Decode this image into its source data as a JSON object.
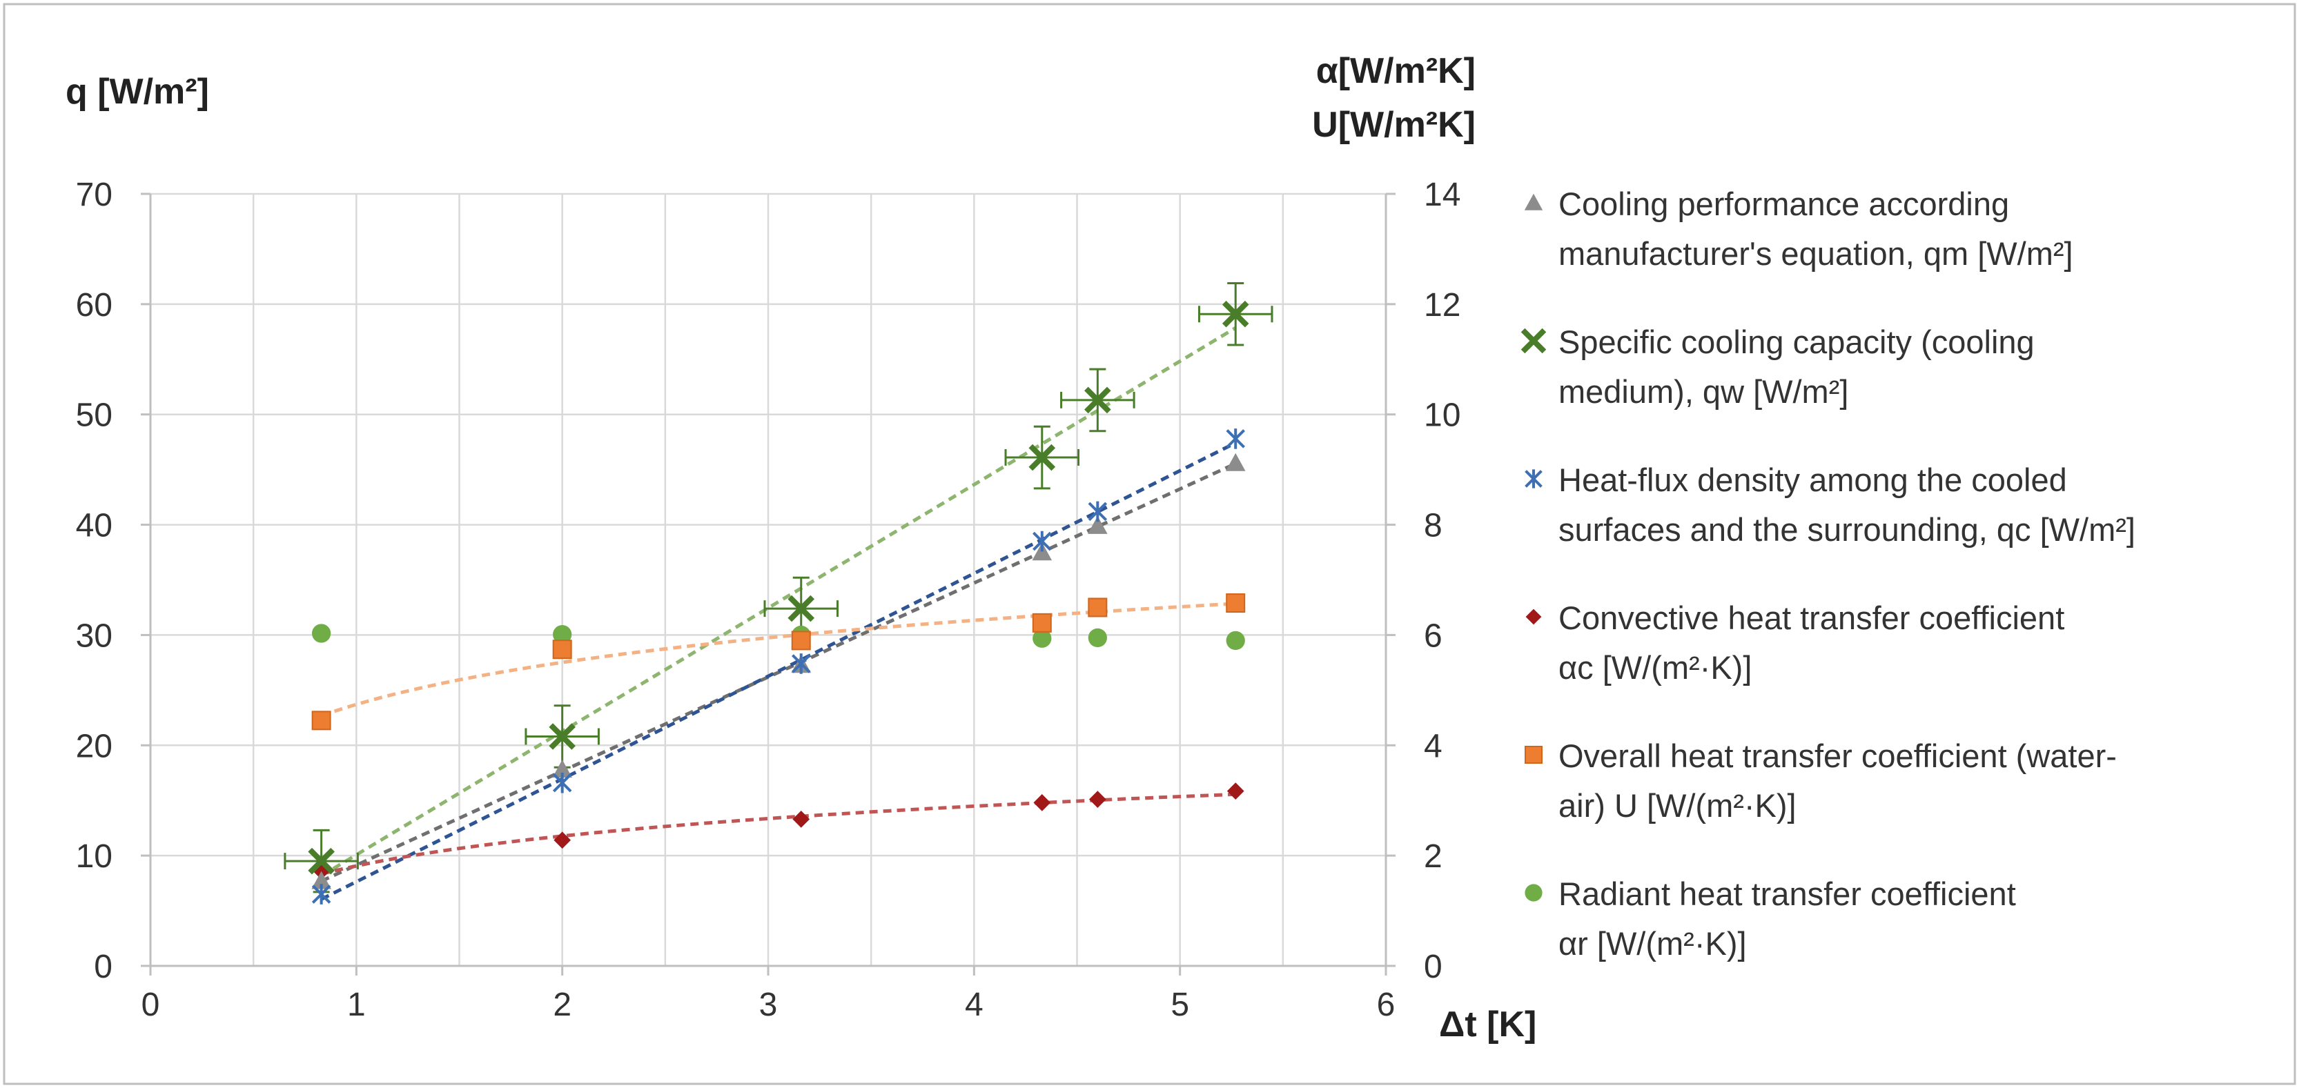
{
  "chart_data": {
    "type": "scatter",
    "title": "",
    "xlabel": "Δt [K]",
    "ylabel_left": "q [W/m²]",
    "ylabel_right": [
      "α[W/m²K]",
      "U[W/m²K]"
    ],
    "xlim": [
      0,
      6
    ],
    "ylim_left": [
      0,
      70
    ],
    "ylim_right": [
      0,
      14
    ],
    "x_ticks": [
      0,
      1,
      2,
      3,
      4,
      5,
      6
    ],
    "y_left_ticks": [
      0,
      10,
      20,
      30,
      40,
      50,
      60,
      70
    ],
    "y_right_ticks": [
      0,
      2,
      4,
      6,
      8,
      10,
      12,
      14
    ],
    "grid": true,
    "legend_position": "right",
    "series": [
      {
        "id": "qm",
        "name": [
          "Cooling performance according",
          "manufacturer's equation, qm [W/m²]"
        ],
        "marker": "triangle",
        "color": "#8c8c8c",
        "trend_color": "#6f6f6f",
        "trend": "linear",
        "axis": "left",
        "x": [
          0.83,
          2.0,
          3.16,
          4.33,
          4.6,
          5.27
        ],
        "y": [
          7.7,
          17.8,
          27.3,
          37.5,
          39.9,
          45.6
        ]
      },
      {
        "id": "qw",
        "name": [
          "Specific cooling capacity (cooling",
          "medium), qw [W/m²]"
        ],
        "marker": "cross",
        "color": "#4a7d2a",
        "trend_color": "#8db56e",
        "trend": "linear",
        "axis": "left",
        "error_bars": true,
        "x": [
          0.83,
          2.0,
          3.16,
          4.33,
          4.6,
          5.27
        ],
        "y": [
          9.5,
          20.8,
          32.4,
          46.1,
          51.3,
          59.1
        ]
      },
      {
        "id": "qc",
        "name": [
          "Heat-flux density among the cooled",
          "surfaces and the surrounding, qc [W/m²]"
        ],
        "marker": "asterisk",
        "color": "#3c6fb4",
        "trend_color": "#2e5494",
        "trend": "linear",
        "axis": "left",
        "x": [
          0.83,
          2.0,
          3.16,
          4.33,
          4.6,
          5.27
        ],
        "y": [
          6.5,
          16.6,
          27.4,
          38.5,
          41.2,
          47.8
        ]
      },
      {
        "id": "ac",
        "name": [
          "Convective heat transfer coefficient",
          "αc [W/(m²·K)]"
        ],
        "marker": "diamond",
        "color": "#a01818",
        "trend_color": "#c05555",
        "trend": "log",
        "axis": "right",
        "x": [
          0.83,
          2.0,
          3.16,
          4.33,
          4.6,
          5.27
        ],
        "y": [
          1.72,
          2.28,
          2.66,
          2.96,
          3.02,
          3.17
        ]
      },
      {
        "id": "U",
        "name": [
          "Overall heat transfer coefficient (water-",
          "air) U [W/(m²·K)]"
        ],
        "marker": "square",
        "color": "#ed7d31",
        "trend_color": "#f4b183",
        "trend": "log",
        "axis": "right",
        "x": [
          0.83,
          2.0,
          3.16,
          4.33,
          4.6,
          5.27
        ],
        "y": [
          4.45,
          5.74,
          5.9,
          6.22,
          6.5,
          6.58
        ]
      },
      {
        "id": "ar",
        "name": [
          "Radiant heat transfer coefficient",
          "αr [W/(m²·K)]"
        ],
        "marker": "circle",
        "color": "#70ad47",
        "trend": "none",
        "axis": "right",
        "x": [
          0.83,
          2.0,
          3.16,
          4.33,
          4.6,
          5.27
        ],
        "y": [
          6.03,
          6.01,
          6.0,
          5.94,
          5.95,
          5.9
        ]
      }
    ]
  }
}
